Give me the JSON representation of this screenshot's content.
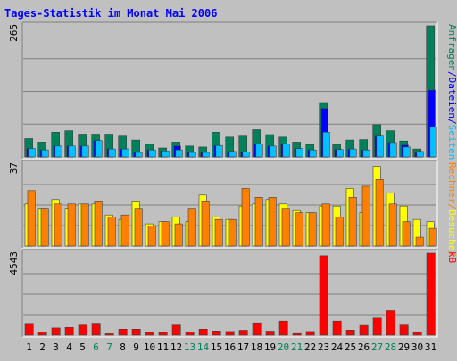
{
  "title": "Tages-Statistik im Monat Mai 2006",
  "colors": {
    "background": "#c0c0c0",
    "panel": "#c0c0c0",
    "grid": "#808080",
    "title": "#0000ff",
    "anfragen": "#00805b",
    "dateien": "#0000ff",
    "seiten": "#00c0ff",
    "besuche": "#ffff00",
    "rechner": "#ff8000",
    "kb": "#ff0000",
    "weekday_label": "#000000",
    "weekend_label": "#00805b"
  },
  "chart_data": [
    {
      "type": "bar",
      "title": "Tages-Statistik im Monat Mai 2006",
      "ymax_label": "265",
      "ylim": [
        0,
        265
      ],
      "categories": [
        "1",
        "2",
        "3",
        "4",
        "5",
        "6",
        "7",
        "8",
        "9",
        "10",
        "11",
        "12",
        "13",
        "14",
        "15",
        "16",
        "17",
        "18",
        "19",
        "20",
        "21",
        "22",
        "23",
        "24",
        "25",
        "26",
        "27",
        "28",
        "29",
        "30",
        "31"
      ],
      "weekend_days": [
        "6",
        "7",
        "13",
        "14",
        "20",
        "21",
        "27",
        "28"
      ],
      "grid": true,
      "series": [
        {
          "name": "Anfragen",
          "color": "#00805b",
          "values": [
            37,
            30,
            50,
            53,
            46,
            46,
            46,
            42,
            34,
            26,
            18,
            30,
            22,
            20,
            50,
            40,
            42,
            55,
            45,
            40,
            30,
            25,
            110,
            25,
            34,
            35,
            65,
            53,
            32,
            16,
            265
          ]
        },
        {
          "name": "Dateien",
          "color": "#0000ff",
          "values": [
            17,
            14,
            22,
            22,
            22,
            33,
            16,
            16,
            9,
            14,
            12,
            22,
            9,
            9,
            23,
            11,
            10,
            26,
            22,
            26,
            17,
            14,
            98,
            15,
            16,
            14,
            42,
            29,
            24,
            11,
            135
          ]
        },
        {
          "name": "Seiten",
          "color": "#00c0ff",
          "values": [
            17,
            14,
            22,
            22,
            22,
            33,
            16,
            16,
            9,
            14,
            12,
            14,
            9,
            9,
            23,
            11,
            10,
            26,
            22,
            26,
            17,
            14,
            50,
            15,
            16,
            14,
            42,
            29,
            20,
            11,
            60
          ]
        }
      ],
      "legend_labels": [
        "Anfragen",
        "/",
        "Dateien",
        "/",
        "Seiten"
      ],
      "legend_colors": [
        "#00805b",
        "#0000ff",
        "#0000ff",
        "#0000ff",
        "#00c0ff"
      ]
    },
    {
      "type": "bar",
      "ymax_label": "37",
      "ylim": [
        0,
        37
      ],
      "categories": [
        "1",
        "2",
        "3",
        "4",
        "5",
        "6",
        "7",
        "8",
        "9",
        "10",
        "11",
        "12",
        "13",
        "14",
        "15",
        "16",
        "17",
        "18",
        "19",
        "20",
        "21",
        "22",
        "23",
        "24",
        "25",
        "26",
        "27",
        "28",
        "29",
        "30",
        "31"
      ],
      "grid": true,
      "series": [
        {
          "name": "Besuche",
          "color": "#ffff00",
          "values": [
            19,
            17,
            21,
            17,
            19,
            19,
            14,
            12,
            20,
            10,
            11,
            13,
            11,
            23,
            13,
            12,
            18,
            19,
            21,
            19,
            16,
            15,
            18,
            18,
            26,
            15,
            36,
            24,
            18,
            12,
            11
          ]
        },
        {
          "name": "Rechner",
          "color": "#ff8000",
          "values": [
            25,
            17,
            19,
            19,
            19,
            20,
            13,
            14,
            17,
            9,
            11,
            10,
            17,
            20,
            12,
            12,
            26,
            22,
            22,
            17,
            15,
            15,
            19,
            13,
            22,
            27,
            30,
            19,
            11,
            4,
            8
          ]
        }
      ],
      "legend_labels": [
        "Rechner",
        "/",
        "Besuche",
        "/"
      ],
      "legend_colors": [
        "#ff8000",
        "#ff8000",
        "#ffff00",
        "#ff8000"
      ]
    },
    {
      "type": "bar",
      "ymax_label": "4543",
      "ylim": [
        0,
        4543
      ],
      "categories": [
        "1",
        "2",
        "3",
        "4",
        "5",
        "6",
        "7",
        "8",
        "9",
        "10",
        "11",
        "12",
        "13",
        "14",
        "15",
        "16",
        "17",
        "18",
        "19",
        "20",
        "21",
        "22",
        "23",
        "24",
        "25",
        "26",
        "27",
        "28",
        "29",
        "30",
        "31"
      ],
      "grid": true,
      "series": [
        {
          "name": "kB",
          "color": "#ff0000",
          "values": [
            650,
            180,
            400,
            430,
            560,
            660,
            80,
            330,
            330,
            150,
            150,
            560,
            160,
            330,
            230,
            200,
            270,
            680,
            220,
            780,
            90,
            200,
            4400,
            780,
            280,
            540,
            950,
            1360,
            560,
            150,
            4543
          ]
        }
      ],
      "legend_labels": [
        "kB"
      ],
      "legend_colors": [
        "#ff0000"
      ]
    }
  ]
}
